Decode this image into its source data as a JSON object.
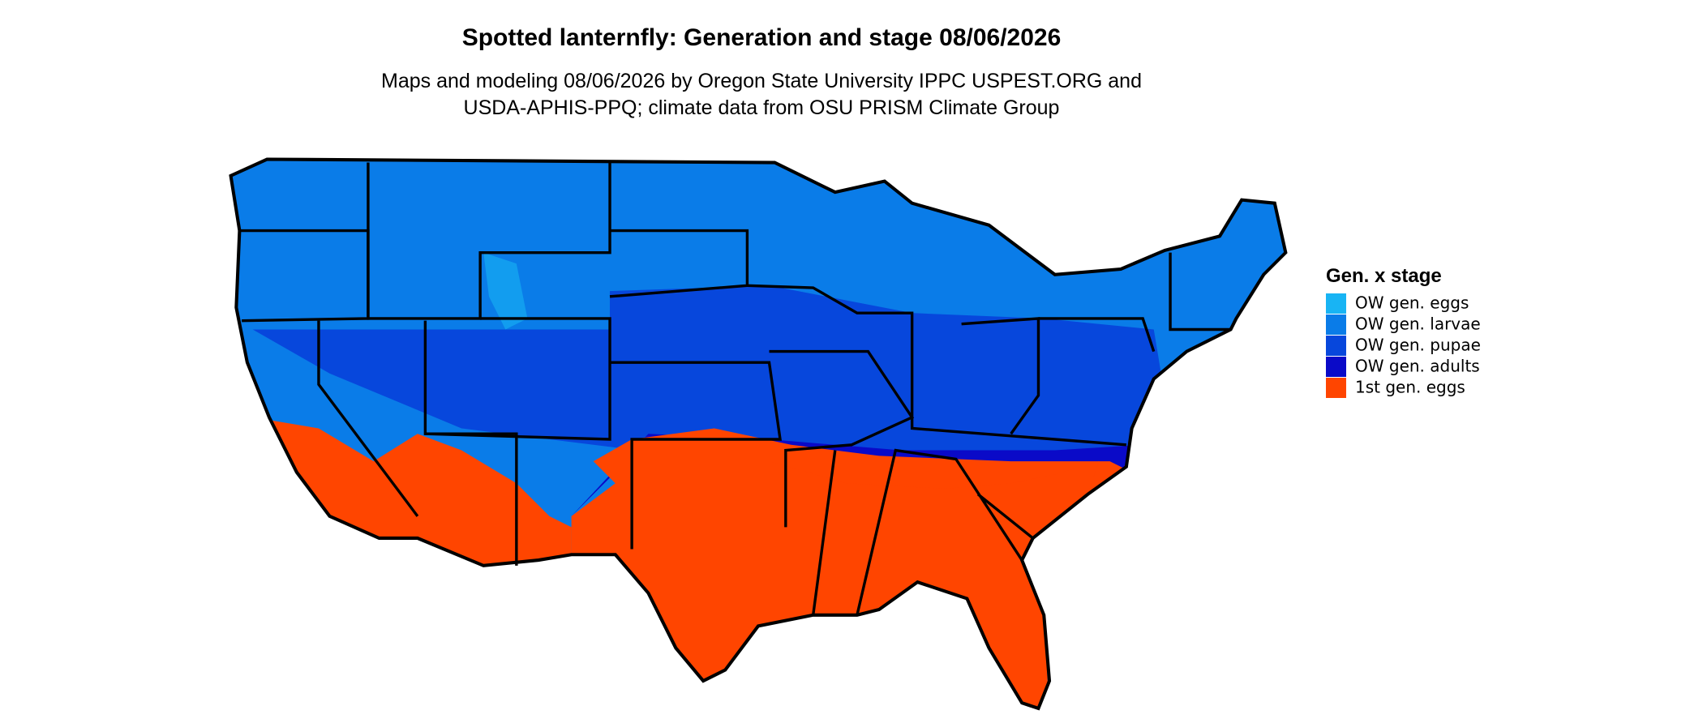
{
  "header": {
    "title": "Spotted lanternfly: Generation and stage 08/06/2026",
    "subtitle_lines": [
      "Maps and modeling 08/06/2026 by Oregon State University IPPC USPEST.ORG and",
      "USDA-APHIS-PPQ; climate data from OSU PRISM Climate Group"
    ]
  },
  "legend": {
    "title": "Gen. x stage",
    "items": [
      {
        "label": "OW gen. eggs",
        "color": "#18b4f4"
      },
      {
        "label": "OW gen. larvae",
        "color": "#0a7ce8"
      },
      {
        "label": "OW gen. pupae",
        "color": "#0747dc"
      },
      {
        "label": "OW gen. adults",
        "color": "#0a0ac8"
      },
      {
        "label": "1st gen. eggs",
        "color": "#ff4500"
      }
    ]
  }
}
